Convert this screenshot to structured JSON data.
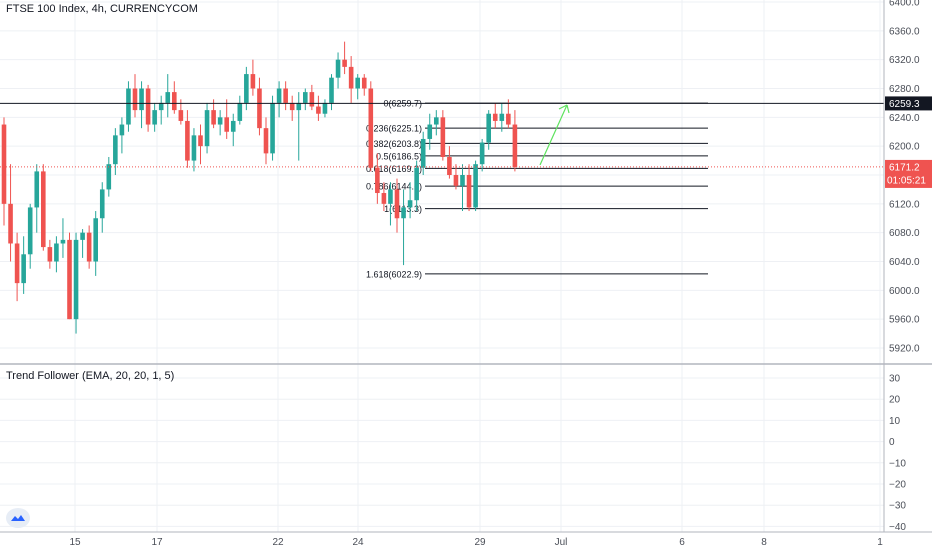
{
  "header": {
    "title": "FTSE 100 Index, 4h, CURRENCYCOM"
  },
  "indicator": {
    "title": "Trend Follower (EMA, 20, 20, 1, 5)",
    "axis_ticks": [
      "30",
      "20",
      "10",
      "0",
      "−10",
      "−20",
      "−30",
      "−40"
    ]
  },
  "price_axis": {
    "ticks": [
      "6400.0",
      "6360.0",
      "6320.0",
      "6280.0",
      "6240.0",
      "6200.0",
      "6160.0",
      "6120.0",
      "6080.0",
      "6040.0",
      "6000.0",
      "5960.0",
      "5920.0"
    ]
  },
  "time_axis": {
    "ticks": [
      "15",
      "17",
      "22",
      "24",
      "29",
      "Jul",
      "6",
      "8",
      "1"
    ]
  },
  "price_labels": {
    "level": "6259.3",
    "last": "6171.2",
    "countdown": "01:05:21"
  },
  "fib_levels": [
    {
      "label": "0(6259.7)",
      "value": 6259.7
    },
    {
      "label": "0.236(6225.1)",
      "value": 6225.1
    },
    {
      "label": "0.382(6203.8)",
      "value": 6203.8
    },
    {
      "label": "0.5(6186.5)",
      "value": 6186.5
    },
    {
      "label": "0.618(6169.2)",
      "value": 6169.2
    },
    {
      "label": "0.786(6144.6)",
      "value": 6144.6
    },
    {
      "label": "1(6113.3)",
      "value": 6113.3
    },
    {
      "label": "1.618(6022.9)",
      "value": 6022.9
    }
  ],
  "colors": {
    "up": "#26a69a",
    "down": "#ef5350",
    "grid": "#eef0f4",
    "arrow": "#5ee35e",
    "axis_text": "#4a4e57",
    "level_line": "#131722"
  },
  "chart_data": {
    "type": "candlestick",
    "title": "FTSE 100 Index, 4h, CURRENCYCOM",
    "ylim": [
      5905,
      6405
    ],
    "horizontal_line": 6259.3,
    "last_price": 6171.2,
    "candles": [
      [
        6230,
        6240,
        6090,
        6120
      ],
      [
        6120,
        6175,
        6040,
        6065
      ],
      [
        6065,
        6080,
        5985,
        6010
      ],
      [
        6010,
        6075,
        5995,
        6050
      ],
      [
        6050,
        6120,
        6030,
        6115
      ],
      [
        6115,
        6175,
        6080,
        6165
      ],
      [
        6165,
        6175,
        6055,
        6060
      ],
      [
        6060,
        6070,
        6030,
        6040
      ],
      [
        6040,
        6075,
        6025,
        6065
      ],
      [
        6065,
        6100,
        6045,
        6070
      ],
      [
        6070,
        6080,
        5960,
        5960
      ],
      [
        5960,
        6080,
        5940,
        6070
      ],
      [
        6070,
        6085,
        6045,
        6080
      ],
      [
        6080,
        6090,
        6030,
        6040
      ],
      [
        6040,
        6110,
        6020,
        6100
      ],
      [
        6100,
        6150,
        6080,
        6140
      ],
      [
        6140,
        6185,
        6130,
        6175
      ],
      [
        6175,
        6225,
        6160,
        6215
      ],
      [
        6215,
        6240,
        6190,
        6230
      ],
      [
        6230,
        6290,
        6220,
        6280
      ],
      [
        6280,
        6300,
        6240,
        6250
      ],
      [
        6250,
        6290,
        6225,
        6280
      ],
      [
        6280,
        6285,
        6220,
        6230
      ],
      [
        6230,
        6260,
        6220,
        6250
      ],
      [
        6250,
        6270,
        6230,
        6260
      ],
      [
        6260,
        6300,
        6240,
        6275
      ],
      [
        6275,
        6290,
        6245,
        6250
      ],
      [
        6250,
        6265,
        6230,
        6235
      ],
      [
        6235,
        6250,
        6170,
        6180
      ],
      [
        6180,
        6225,
        6165,
        6215
      ],
      [
        6215,
        6230,
        6175,
        6200
      ],
      [
        6200,
        6260,
        6190,
        6250
      ],
      [
        6250,
        6265,
        6225,
        6230
      ],
      [
        6230,
        6250,
        6215,
        6240
      ],
      [
        6240,
        6265,
        6210,
        6220
      ],
      [
        6220,
        6245,
        6200,
        6235
      ],
      [
        6235,
        6270,
        6230,
        6260
      ],
      [
        6260,
        6310,
        6250,
        6300
      ],
      [
        6300,
        6320,
        6270,
        6280
      ],
      [
        6280,
        6295,
        6215,
        6225
      ],
      [
        6225,
        6240,
        6175,
        6190
      ],
      [
        6190,
        6270,
        6180,
        6260
      ],
      [
        6260,
        6290,
        6240,
        6280
      ],
      [
        6280,
        6290,
        6250,
        6260
      ],
      [
        6260,
        6270,
        6235,
        6250
      ],
      [
        6250,
        6275,
        6180,
        6260
      ],
      [
        6260,
        6280,
        6250,
        6275
      ],
      [
        6275,
        6285,
        6250,
        6255
      ],
      [
        6255,
        6270,
        6235,
        6245
      ],
      [
        6245,
        6265,
        6240,
        6260
      ],
      [
        6260,
        6300,
        6250,
        6295
      ],
      [
        6295,
        6330,
        6280,
        6320
      ],
      [
        6320,
        6345,
        6300,
        6310
      ],
      [
        6310,
        6325,
        6260,
        6280
      ],
      [
        6280,
        6300,
        6265,
        6295
      ],
      [
        6295,
        6300,
        6270,
        6280
      ],
      [
        6280,
        6290,
        6165,
        6170
      ],
      [
        6170,
        6190,
        6120,
        6135
      ],
      [
        6135,
        6150,
        6110,
        6120
      ],
      [
        6120,
        6150,
        6090,
        6140
      ],
      [
        6140,
        6155,
        6080,
        6100
      ],
      [
        6100,
        6140,
        6035,
        6115
      ],
      [
        6115,
        6150,
        6100,
        6125
      ],
      [
        6125,
        6180,
        6110,
        6170
      ],
      [
        6170,
        6220,
        6160,
        6210
      ],
      [
        6210,
        6245,
        6195,
        6230
      ],
      [
        6230,
        6250,
        6215,
        6240
      ],
      [
        6240,
        6250,
        6180,
        6185
      ],
      [
        6185,
        6200,
        6155,
        6160
      ],
      [
        6160,
        6175,
        6140,
        6145
      ],
      [
        6145,
        6175,
        6110,
        6160
      ],
      [
        6160,
        6175,
        6110,
        6115
      ],
      [
        6115,
        6180,
        6110,
        6175
      ],
      [
        6175,
        6210,
        6165,
        6205
      ],
      [
        6205,
        6250,
        6195,
        6245
      ],
      [
        6245,
        6260,
        6225,
        6235
      ],
      [
        6235,
        6260,
        6220,
        6245
      ],
      [
        6245,
        6265,
        6225,
        6230
      ],
      [
        6230,
        6250,
        6165,
        6171
      ]
    ]
  }
}
